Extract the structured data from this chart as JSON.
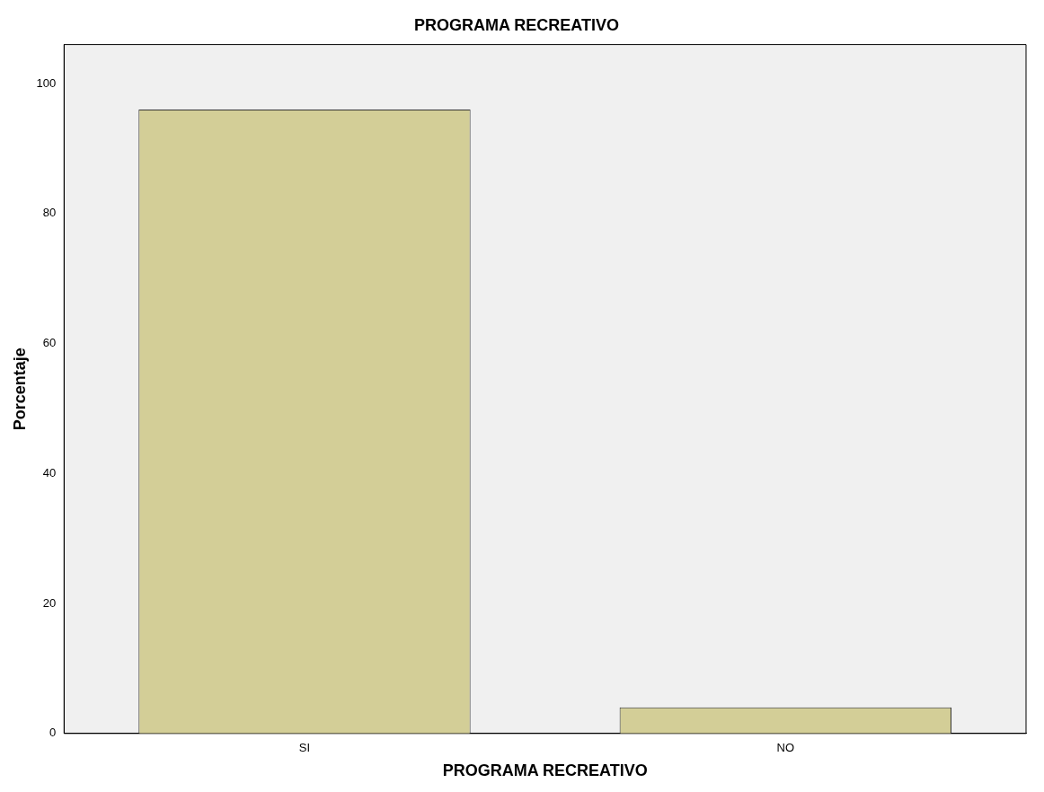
{
  "chart_data": {
    "type": "bar",
    "title": "PROGRAMA RECREATIVO",
    "xlabel": "PROGRAMA RECREATIVO",
    "ylabel": "Porcentaje",
    "categories": [
      "SI",
      "NO"
    ],
    "values": [
      96,
      4
    ],
    "color": "#d3ce97",
    "ylim": [
      0,
      106
    ],
    "yticks": [
      0,
      20,
      40,
      60,
      80,
      100
    ],
    "grid": false,
    "legend": false
  }
}
